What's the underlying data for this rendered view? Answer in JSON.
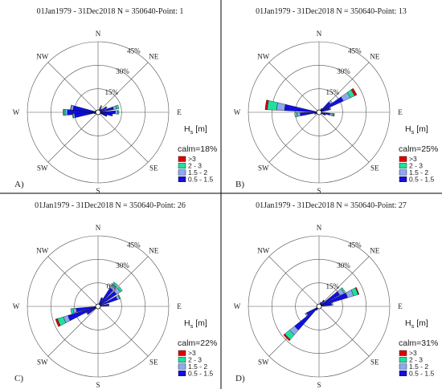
{
  "colors": {
    "class_0": "#1010e0",
    "class_1": "#8fa8f0",
    "class_2": "#20e0a0",
    "class_3": "#dd0000",
    "grid": "#555555",
    "divider": "#000000"
  },
  "directions": [
    "N",
    "NE",
    "E",
    "SE",
    "S",
    "SW",
    "W",
    "NW"
  ],
  "hs_legend_title": "H",
  "hs_legend_sub": "s",
  "hs_legend_unit": " [m]",
  "legend_classes": [
    ">3",
    "2 - 3",
    "1.5 - 2",
    "0.5 - 1.5"
  ],
  "chart_data": [
    {
      "type": "wind-rose",
      "panel_label": "A)",
      "title": "01Jan1979 - 31Dec2018 N = 350640-Point: 1",
      "calm": "calm=18%",
      "ring_labels": [
        "15%",
        "30%",
        "45%"
      ],
      "rlim": [
        0,
        45
      ],
      "sectors": [
        {
          "dir": 270,
          "values": [
            19.5,
            1.5,
            1.0,
            0.2
          ]
        },
        {
          "dir": 280,
          "values": [
            16.0,
            1.2,
            0.5,
            0
          ]
        },
        {
          "dir": 262,
          "values": [
            15.0,
            1.0,
            0.4,
            0
          ]
        },
        {
          "dir": 60,
          "values": [
            6.0,
            0.5,
            0,
            0
          ]
        },
        {
          "dir": 75,
          "values": [
            10.0,
            2.0,
            1.5,
            0
          ]
        },
        {
          "dir": 90,
          "values": [
            11.0,
            1.5,
            0.8,
            0
          ]
        },
        {
          "dir": 100,
          "values": [
            9.0,
            0.5,
            0,
            0
          ]
        },
        {
          "dir": 112,
          "values": [
            6.0,
            0,
            0,
            0
          ]
        },
        {
          "dir": 45,
          "values": [
            3.0,
            0,
            0,
            0
          ]
        },
        {
          "dir": 28,
          "values": [
            4.0,
            0.8,
            0,
            0
          ]
        },
        {
          "dir": 250,
          "values": [
            2.5,
            0,
            0,
            0
          ]
        },
        {
          "dir": 238,
          "values": [
            1.5,
            0,
            0,
            0
          ]
        },
        {
          "dir": 292,
          "values": [
            2.0,
            0,
            0,
            0
          ]
        }
      ]
    },
    {
      "type": "wind-rose",
      "panel_label": "B)",
      "title": "01Jan1979 - 31Dec2018 N = 350640-Point: 13",
      "calm": "calm=25%",
      "ring_labels": [
        "15%",
        "30%",
        "45%"
      ],
      "rlim": [
        0,
        45
      ],
      "sectors": [
        {
          "dir": 278,
          "values": [
            22.0,
            5.0,
            6.0,
            1.3
          ]
        },
        {
          "dir": 264,
          "values": [
            12.0,
            2.0,
            1.5,
            0
          ]
        },
        {
          "dir": 60,
          "values": [
            17.0,
            5.0,
            3.0,
            1.5
          ]
        },
        {
          "dir": 48,
          "values": [
            9.0,
            1.5,
            0,
            0
          ]
        },
        {
          "dir": 72,
          "values": [
            7.0,
            0.8,
            0,
            0
          ]
        },
        {
          "dir": 100,
          "values": [
            7.0,
            1.5,
            1.0,
            0.3
          ]
        },
        {
          "dir": 112,
          "values": [
            4.0,
            0.5,
            0,
            0
          ]
        },
        {
          "dir": 248,
          "values": [
            3.0,
            0,
            0,
            0
          ]
        },
        {
          "dir": 36,
          "values": [
            3.0,
            0,
            0,
            0
          ]
        }
      ]
    },
    {
      "type": "wind-rose",
      "panel_label": "C)",
      "title": "01Jan1979 - 31Dec2018 N = 350640-Point: 26",
      "calm": "calm=22%",
      "ring_labels": [
        "0%",
        "30%",
        "45%"
      ],
      "rlim": [
        0,
        45
      ],
      "sectors": [
        {
          "dir": 248,
          "values": [
            20.0,
            3.0,
            4.0,
            1.3
          ]
        },
        {
          "dir": 260,
          "values": [
            14.0,
            2.0,
            1.5,
            0
          ]
        },
        {
          "dir": 38,
          "values": [
            14.0,
            2.5,
            2.0,
            0
          ]
        },
        {
          "dir": 52,
          "values": [
            14.0,
            3.0,
            1.5,
            0
          ]
        },
        {
          "dir": 66,
          "values": [
            13.0,
            1.5,
            0.5,
            0
          ]
        },
        {
          "dir": 82,
          "values": [
            7.0,
            0,
            0,
            0
          ]
        },
        {
          "dir": 236,
          "values": [
            8.0,
            0.5,
            0,
            0
          ]
        },
        {
          "dir": 25,
          "values": [
            6.0,
            0,
            0,
            0
          ]
        }
      ]
    },
    {
      "type": "wind-rose",
      "panel_label": "D)",
      "title": "01Jan1979 - 31Dec2018 N = 350640-Point: 27",
      "calm": "calm=31%",
      "ring_labels": [
        "15%",
        "30%",
        "45%"
      ],
      "rlim": [
        0,
        45
      ],
      "sectors": [
        {
          "dir": 226,
          "values": [
            20.0,
            4.0,
            4.0,
            1.0
          ]
        },
        {
          "dir": 238,
          "values": [
            9.0,
            1.0,
            0,
            0
          ]
        },
        {
          "dir": 68,
          "values": [
            19.0,
            4.0,
            3.0,
            0.6
          ]
        },
        {
          "dir": 56,
          "values": [
            15.0,
            3.0,
            1.0,
            0
          ]
        },
        {
          "dir": 80,
          "values": [
            8.0,
            1.0,
            0,
            0
          ]
        },
        {
          "dir": 40,
          "values": [
            5.0,
            0,
            0,
            0
          ]
        },
        {
          "dir": 24,
          "values": [
            3.0,
            0,
            0,
            0
          ]
        },
        {
          "dir": 212,
          "values": [
            3.0,
            0,
            0,
            0
          ]
        }
      ]
    }
  ]
}
